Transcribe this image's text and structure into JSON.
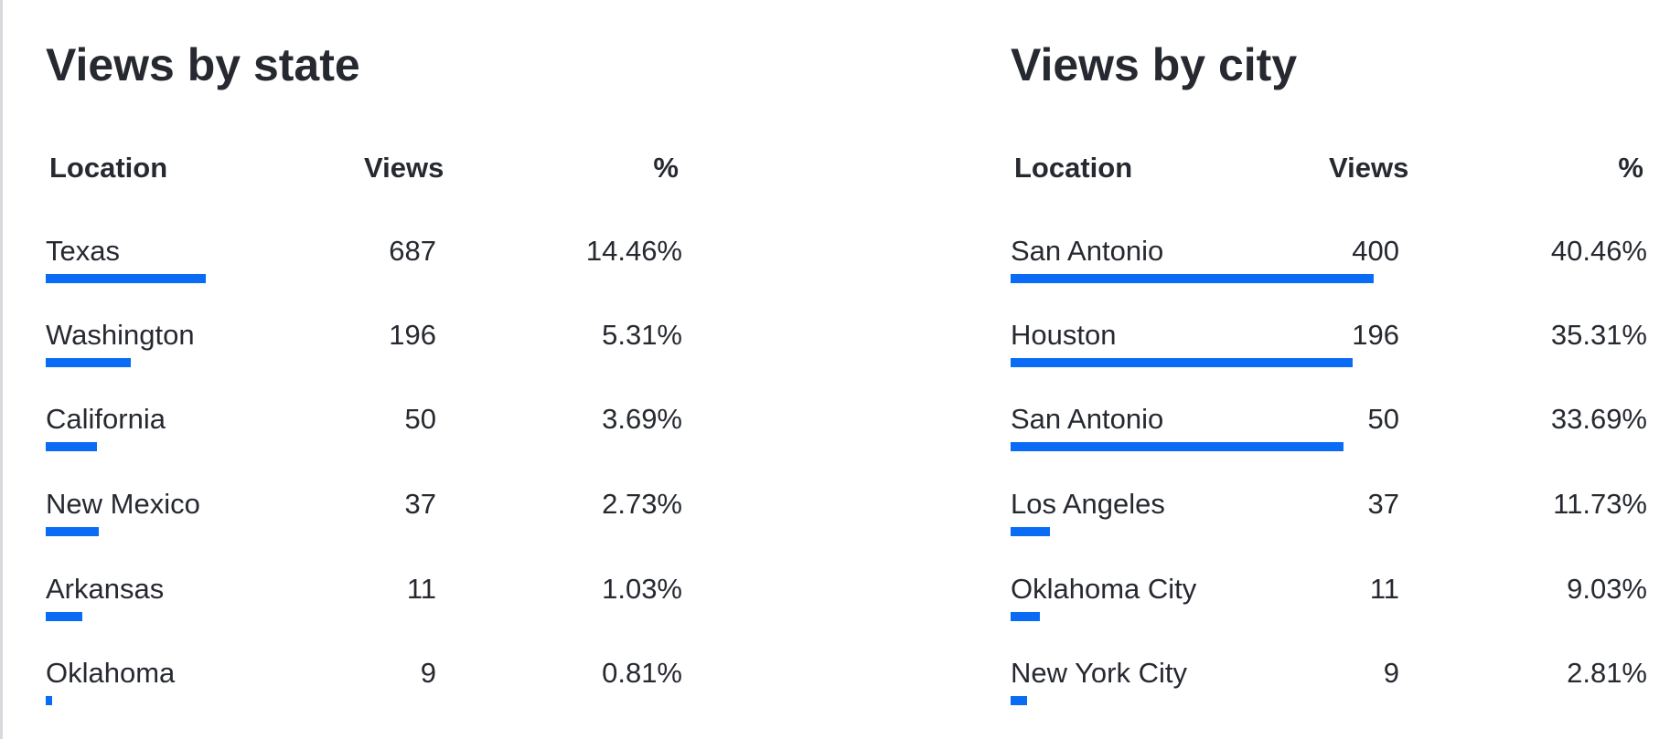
{
  "state_panel": {
    "title": "Views by state",
    "headers": {
      "location": "Location",
      "views": "Views",
      "percent": "%"
    },
    "rows": [
      {
        "location": "Texas",
        "views": "687",
        "percent": "14.46%",
        "bar_fraction": 0.4411
      },
      {
        "location": "Washington",
        "views": "196",
        "percent": "5.31%",
        "bar_fraction": 0.2353
      },
      {
        "location": "California",
        "views": "50",
        "percent": "3.69%",
        "bar_fraction": 0.1412
      },
      {
        "location": "New Mexico",
        "views": "37",
        "percent": "2.73%",
        "bar_fraction": 0.1471
      },
      {
        "location": "Arkansas",
        "views": "11",
        "percent": "1.03%",
        "bar_fraction": 0.1
      },
      {
        "location": "Oklahoma",
        "views": "9",
        "percent": "0.81%",
        "bar_fraction": 0.0176
      }
    ]
  },
  "city_panel": {
    "title": "Views by city",
    "headers": {
      "location": "Location",
      "views": "Views",
      "percent": "%"
    },
    "rows": [
      {
        "location": "San Antonio",
        "views": "400",
        "percent": "40.46%",
        "bar_fraction": 1.0
      },
      {
        "location": "Houston",
        "views": "196",
        "percent": "35.31%",
        "bar_fraction": 0.9412
      },
      {
        "location": "San Antonio",
        "views": "50",
        "percent": "33.69%",
        "bar_fraction": 0.9176
      },
      {
        "location": "Los Angeles",
        "views": "37",
        "percent": "11.73%",
        "bar_fraction": 0.1088
      },
      {
        "location": "Oklahoma City",
        "views": "11",
        "percent": "9.03%",
        "bar_fraction": 0.0794
      },
      {
        "location": "New York City",
        "views": "9",
        "percent": "2.81%",
        "bar_fraction": 0.0441
      }
    ]
  },
  "colors": {
    "bar": "#0a6cf5",
    "text": "#262930",
    "divider": "#d8d9dc"
  }
}
